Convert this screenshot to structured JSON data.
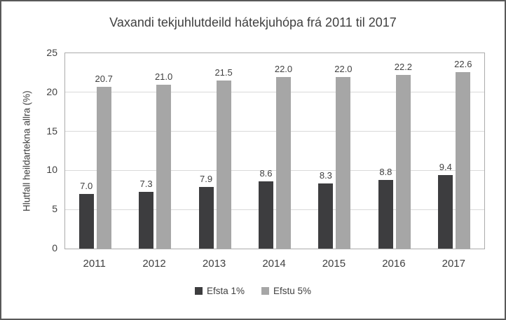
{
  "window": {
    "background": "#ffffff",
    "frame_border_color": "#595959"
  },
  "chart_data": {
    "type": "bar",
    "title": "Vaxandi tekjuhlutdeild hátekjuhópa frá 2011 til 2017",
    "ylabel": "Hlutfall heildartekna allra (%)",
    "xlabel": "",
    "categories": [
      "2011",
      "2012",
      "2013",
      "2014",
      "2015",
      "2016",
      "2017"
    ],
    "series": [
      {
        "name": "Efsta 1%",
        "color": "#3d3d3f",
        "values": [
          7.0,
          7.3,
          7.9,
          8.6,
          8.3,
          8.8,
          9.4
        ]
      },
      {
        "name": "Efstu 5%",
        "color": "#a6a6a6",
        "values": [
          20.7,
          21.0,
          21.5,
          22.0,
          22.0,
          22.2,
          22.6
        ]
      }
    ],
    "ylim": [
      0,
      25
    ],
    "yticks": [
      0,
      5,
      10,
      15,
      20,
      25
    ],
    "grid": true,
    "gridline_color": "#d9d9d9",
    "axis_color": "#ababab",
    "text_color": "#404040",
    "legend_position": "bottom",
    "data_labels": true,
    "value_decimals": 1
  }
}
